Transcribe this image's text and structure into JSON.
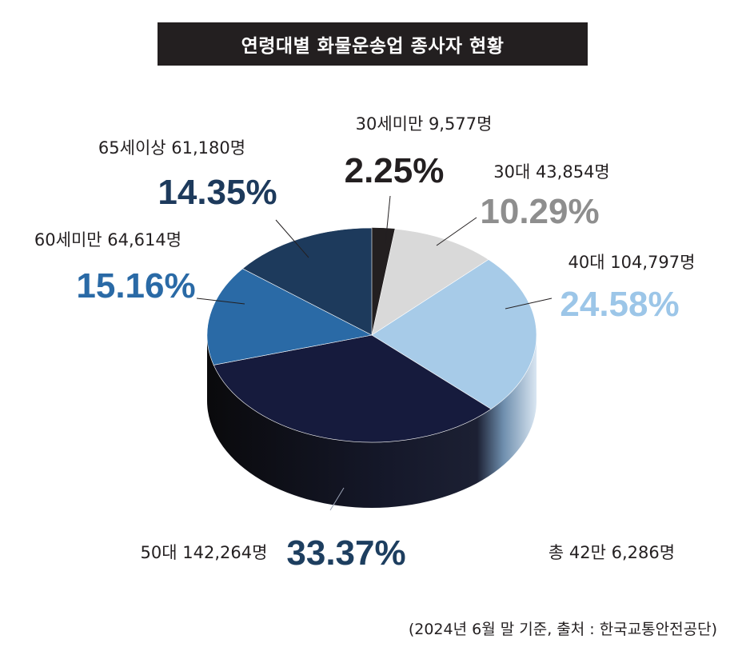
{
  "title": "연령대별 화물운송업 종사자 현황",
  "total_label": "총 42만 6,286명",
  "footer": "(2024년 6월 말 기준, 출처 : 한국교통안전공단)",
  "chart_data": {
    "type": "pie",
    "title": "연령대별 화물운송업 종사자 현황",
    "unit": "명",
    "slices": [
      {
        "label": "30세미만 9,577명",
        "value": 9577,
        "percent": 2.25,
        "percent_label": "2.25%",
        "color": "#231f20",
        "pct_color": "#231f20"
      },
      {
        "label": "30대 43,854명",
        "value": 43854,
        "percent": 10.29,
        "percent_label": "10.29%",
        "color": "#d9d9d9",
        "pct_color": "#8e8e8e"
      },
      {
        "label": "40대 104,797명",
        "value": 104797,
        "percent": 24.58,
        "percent_label": "24.58%",
        "color": "#a7cbe8",
        "pct_color": "#9cc6e8"
      },
      {
        "label": "50대 142,264명",
        "value": 142264,
        "percent": 33.37,
        "percent_label": "33.37%",
        "color": "#161b3d",
        "pct_color": "#1d3e5f"
      },
      {
        "label": "60세미만 64,614명",
        "value": 64614,
        "percent": 15.16,
        "percent_label": "15.16%",
        "color": "#2a6aa6",
        "pct_color": "#2a6aa6"
      },
      {
        "label": "65세이상 61,180명",
        "value": 61180,
        "percent": 14.35,
        "percent_label": "14.35%",
        "color": "#1d3a5c",
        "pct_color": "#1d3a5c"
      }
    ]
  }
}
